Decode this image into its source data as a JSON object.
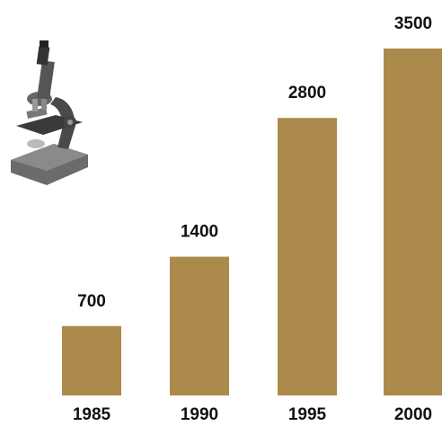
{
  "chart_data": {
    "type": "bar",
    "title": "",
    "xlabel": "",
    "ylabel": "",
    "categories": [
      "1985",
      "1990",
      "1995",
      "2000"
    ],
    "values": [
      700,
      1400,
      2800,
      3500
    ],
    "value_labels": [
      "700",
      "1400",
      "2800",
      "3500"
    ],
    "ylim": [
      0,
      3500
    ],
    "grid": false,
    "legend": "none",
    "bar_color": "#ac8a4b"
  },
  "decoration": {
    "icon": "microscope-icon"
  }
}
